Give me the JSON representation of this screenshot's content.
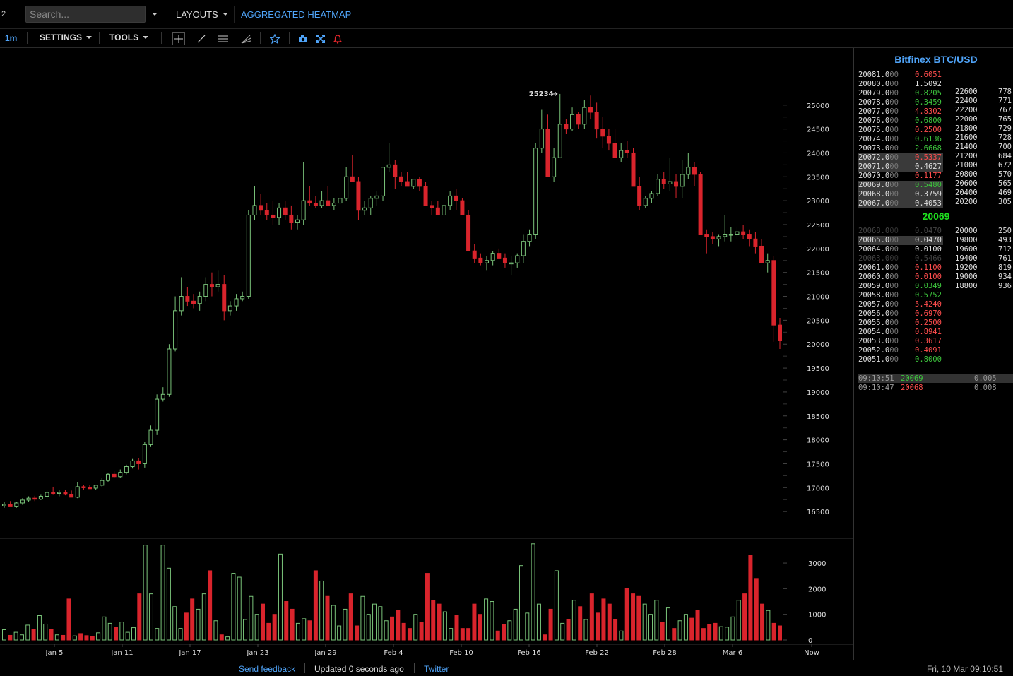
{
  "topbar": {
    "number": "2",
    "search_placeholder": "Search...",
    "layouts_label": "LAYOUTS",
    "heatmap_label": "AGGREGATED HEATMAP"
  },
  "toolbar": {
    "timeframe": "1m",
    "settings_label": "SETTINGS",
    "tools_label": "TOOLS",
    "icons": [
      "crosshair-icon",
      "trendline-icon",
      "horizontal-lines-icon",
      "fib-fan-icon",
      "star-icon",
      "camera-icon",
      "fullscreen-icon",
      "alert-bell-icon"
    ]
  },
  "chart_data": {
    "type": "candlestick",
    "price_ticks": [
      25000,
      24500,
      24000,
      23500,
      23000,
      22500,
      22000,
      21500,
      21000,
      20500,
      20000,
      19500,
      19000,
      18500,
      18000,
      17500,
      17000,
      16500
    ],
    "price_range": [
      16000,
      25750
    ],
    "high_annotation": "25234",
    "volume_ticks": [
      3000,
      2000,
      1000,
      0
    ],
    "volume_range": [
      0,
      3800
    ],
    "x_labels": [
      "Jan 5",
      "Jan 11",
      "Jan 17",
      "Jan 23",
      "Jan 29",
      "Feb 4",
      "Feb 10",
      "Feb 16",
      "Feb 22",
      "Feb 28",
      "Mar 6",
      "Now"
    ],
    "x_label_days": [
      4,
      10,
      16,
      22,
      28,
      34,
      40,
      46,
      52,
      58,
      64,
      71
    ],
    "candles_ohlc": [
      [
        16620,
        16700,
        16580,
        16650
      ],
      [
        16650,
        16720,
        16600,
        16600
      ],
      [
        16600,
        16700,
        16580,
        16680
      ],
      [
        16680,
        16780,
        16640,
        16740
      ],
      [
        16740,
        16820,
        16700,
        16780
      ],
      [
        16780,
        16830,
        16720,
        16760
      ],
      [
        16760,
        16850,
        16740,
        16820
      ],
      [
        16820,
        16960,
        16760,
        16900
      ],
      [
        16900,
        17020,
        16850,
        16880
      ],
      [
        16880,
        16950,
        16820,
        16900
      ],
      [
        16900,
        16960,
        16840,
        16860
      ],
      [
        16860,
        16940,
        16820,
        16800
      ],
      [
        16800,
        17110,
        16780,
        17020
      ],
      [
        17020,
        17060,
        16960,
        17000
      ],
      [
        17000,
        17050,
        16980,
        16990
      ],
      [
        16990,
        17060,
        16960,
        17050
      ],
      [
        17050,
        17200,
        17020,
        17150
      ],
      [
        17150,
        17300,
        17120,
        17280
      ],
      [
        17280,
        17340,
        17200,
        17230
      ],
      [
        17230,
        17380,
        17200,
        17320
      ],
      [
        17320,
        17480,
        17280,
        17440
      ],
      [
        17440,
        17600,
        17400,
        17560
      ],
      [
        17560,
        17620,
        17380,
        17500
      ],
      [
        17500,
        17950,
        17420,
        17900
      ],
      [
        17900,
        18300,
        17850,
        18200
      ],
      [
        18200,
        18950,
        18100,
        18850
      ],
      [
        18850,
        19100,
        18800,
        18950
      ],
      [
        18950,
        20000,
        18900,
        19900
      ],
      [
        19900,
        21000,
        19850,
        20700
      ],
      [
        20700,
        21400,
        20600,
        21000
      ],
      [
        21000,
        21200,
        20800,
        20900
      ],
      [
        20900,
        21050,
        20750,
        20850
      ],
      [
        20850,
        21100,
        20700,
        21000
      ],
      [
        21000,
        21400,
        20900,
        21250
      ],
      [
        21250,
        21500,
        21000,
        21200
      ],
      [
        21200,
        21550,
        21100,
        21250
      ],
      [
        21250,
        21450,
        20500,
        20700
      ],
      [
        20700,
        20900,
        20600,
        20800
      ],
      [
        20800,
        21050,
        20700,
        20950
      ],
      [
        20950,
        21100,
        20900,
        21000
      ],
      [
        21000,
        22800,
        20950,
        22700
      ],
      [
        22700,
        23300,
        22600,
        22900
      ],
      [
        22900,
        23150,
        22700,
        22800
      ],
      [
        22800,
        22950,
        22600,
        22700
      ],
      [
        22700,
        23000,
        22500,
        22650
      ],
      [
        22650,
        22950,
        22500,
        22850
      ],
      [
        22850,
        23000,
        22600,
        22700
      ],
      [
        22700,
        22900,
        22400,
        22550
      ],
      [
        22550,
        22700,
        22400,
        22600
      ],
      [
        22600,
        23800,
        22500,
        23000
      ],
      [
        23000,
        23300,
        22900,
        22950
      ],
      [
        22950,
        23100,
        22850,
        22900
      ],
      [
        22900,
        23200,
        22850,
        23000
      ],
      [
        23000,
        23300,
        22900,
        22900
      ],
      [
        22900,
        23050,
        22800,
        22950
      ],
      [
        22950,
        23100,
        22900,
        23050
      ],
      [
        23050,
        23700,
        23000,
        23500
      ],
      [
        23500,
        23950,
        23400,
        23400
      ],
      [
        23400,
        23500,
        22600,
        22800
      ],
      [
        22800,
        23000,
        22700,
        22850
      ],
      [
        22850,
        23100,
        22700,
        23050
      ],
      [
        23050,
        23200,
        22900,
        23100
      ],
      [
        23100,
        23700,
        23000,
        23700
      ],
      [
        23700,
        24200,
        23600,
        23750
      ],
      [
        23750,
        23850,
        23250,
        23500
      ],
      [
        23500,
        23600,
        23300,
        23400
      ],
      [
        23400,
        23600,
        23300,
        23300
      ],
      [
        23300,
        23400,
        23250,
        23450
      ],
      [
        23450,
        23500,
        23200,
        23300
      ],
      [
        23300,
        23400,
        22900,
        22900
      ],
      [
        22900,
        23000,
        22700,
        22850
      ],
      [
        22850,
        23000,
        22700,
        22700
      ],
      [
        22700,
        23050,
        22600,
        22900
      ],
      [
        22900,
        23200,
        22800,
        23100
      ],
      [
        23100,
        23250,
        22800,
        23000
      ],
      [
        23000,
        23050,
        22700,
        22700
      ],
      [
        22700,
        22800,
        22100,
        21950
      ],
      [
        21950,
        22100,
        21700,
        21800
      ],
      [
        21800,
        21900,
        21650,
        21700
      ],
      [
        21700,
        21850,
        21550,
        21750
      ],
      [
        21750,
        21950,
        21650,
        21900
      ],
      [
        21900,
        22000,
        21800,
        21800
      ],
      [
        21800,
        21900,
        21600,
        21700
      ],
      [
        21700,
        21850,
        21450,
        21700
      ],
      [
        21700,
        21900,
        21600,
        21850
      ],
      [
        21850,
        22300,
        21700,
        22150
      ],
      [
        22150,
        22400,
        22050,
        22300
      ],
      [
        22300,
        24200,
        22200,
        24100
      ],
      [
        24100,
        24900,
        24000,
        24500
      ],
      [
        24500,
        24800,
        23600,
        23500
      ],
      [
        23500,
        24100,
        23400,
        23900
      ],
      [
        23900,
        25234,
        23900,
        24600
      ],
      [
        24600,
        24700,
        24400,
        24500
      ],
      [
        24500,
        24950,
        24450,
        24800
      ],
      [
        24800,
        24850,
        24500,
        24600
      ],
      [
        24600,
        25100,
        24500,
        24950
      ],
      [
        24950,
        25200,
        24700,
        24850
      ],
      [
        24850,
        25050,
        24300,
        24500
      ],
      [
        24500,
        24750,
        24100,
        24350
      ],
      [
        24350,
        24500,
        24050,
        24200
      ],
      [
        24200,
        24500,
        23950,
        23900
      ],
      [
        23900,
        24200,
        23800,
        24050
      ],
      [
        24050,
        24250,
        23900,
        24000
      ],
      [
        24000,
        24100,
        23300,
        23300
      ],
      [
        23300,
        23500,
        22800,
        22900
      ],
      [
        22900,
        23100,
        22850,
        23050
      ],
      [
        23050,
        23200,
        22950,
        23150
      ],
      [
        23150,
        23550,
        23100,
        23450
      ],
      [
        23450,
        23600,
        23250,
        23350
      ],
      [
        23350,
        23900,
        23200,
        23400
      ],
      [
        23400,
        23550,
        23050,
        23300
      ],
      [
        23300,
        23850,
        23050,
        23550
      ],
      [
        23550,
        24000,
        23450,
        23700
      ],
      [
        23700,
        23800,
        23300,
        23550
      ],
      [
        23550,
        23600,
        22800,
        22300
      ],
      [
        22300,
        22400,
        21900,
        22250
      ],
      [
        22250,
        22350,
        22100,
        22200
      ],
      [
        22200,
        22300,
        22050,
        22250
      ],
      [
        22250,
        22700,
        22150,
        22300
      ],
      [
        22300,
        22450,
        22150,
        22300
      ],
      [
        22300,
        22450,
        22200,
        22350
      ],
      [
        22350,
        22500,
        22200,
        22300
      ],
      [
        22300,
        22400,
        22050,
        22200
      ],
      [
        22200,
        22350,
        21900,
        22050
      ],
      [
        22050,
        22200,
        21750,
        21700
      ],
      [
        21700,
        21900,
        21500,
        21750
      ],
      [
        21750,
        21850,
        20050,
        20400
      ],
      [
        20400,
        20550,
        19900,
        20070
      ]
    ],
    "volumes": [
      400,
      180,
      300,
      200,
      580,
      420,
      950,
      620,
      420,
      200,
      180,
      1600,
      160,
      250,
      170,
      150,
      280,
      900,
      650,
      500,
      700,
      300,
      480,
      1800,
      3700,
      1800,
      450,
      3700,
      2800,
      1300,
      450,
      1050,
      1600,
      1200,
      1800,
      2700,
      750,
      200,
      120,
      2600,
      2450,
      800,
      1700,
      1000,
      1400,
      650,
      1000,
      3350,
      1500,
      1200,
      650,
      830,
      750,
      2700,
      2300,
      1700,
      1350,
      550,
      1200,
      1800,
      550,
      1700,
      1000,
      1400,
      1300,
      750,
      900,
      1150,
      650,
      450,
      1000,
      700,
      2600,
      1550,
      1400,
      1100,
      450,
      950,
      450,
      450,
      1400,
      1000,
      1600,
      1500,
      350,
      600,
      750,
      1200,
      2900,
      1050,
      3750,
      1400,
      200,
      1200,
      2700,
      650,
      800,
      1550,
      1300,
      800,
      1800,
      1050,
      1600,
      1400,
      800,
      350,
      2000,
      1800,
      1700,
      1400,
      1000,
      1550,
      700,
      1250,
      450,
      750,
      1000,
      850,
      1150,
      450,
      600,
      650,
      520,
      500,
      900,
      1550,
      1800,
      3300,
      2400,
      1400,
      1150,
      650,
      550
    ]
  },
  "book": {
    "title": "Bitfinex BTC/USD",
    "asks": [
      {
        "price": "20081.0",
        "dim": "00",
        "amt": "0.6051",
        "c": "r"
      },
      {
        "price": "20080.0",
        "dim": "00",
        "amt": "1.5092",
        "c": "y"
      },
      {
        "price": "20079.0",
        "dim": "00",
        "amt": "0.8205",
        "c": "g"
      },
      {
        "price": "20078.0",
        "dim": "00",
        "amt": "0.3459",
        "c": "g"
      },
      {
        "price": "20077.0",
        "dim": "00",
        "amt": "4.8302",
        "c": "r"
      },
      {
        "price": "20076.0",
        "dim": "00",
        "amt": "0.6800",
        "c": "g"
      },
      {
        "price": "20075.0",
        "dim": "00",
        "amt": "0.2500",
        "c": "r"
      },
      {
        "price": "20074.0",
        "dim": "00",
        "amt": "0.6136",
        "c": "g"
      },
      {
        "price": "20073.0",
        "dim": "00",
        "amt": "2.6668",
        "c": "g"
      },
      {
        "price": "20072.0",
        "dim": "00",
        "amt": "0.5337",
        "c": "r",
        "hl": true
      },
      {
        "price": "20071.0",
        "dim": "00",
        "amt": "0.4627",
        "c": "y",
        "hl": true
      },
      {
        "price": "20070.0",
        "dim": "00",
        "amt": "0.1177",
        "c": "r"
      },
      {
        "price": "20069.0",
        "dim": "00",
        "amt": "0.5480",
        "c": "g",
        "hl": true
      },
      {
        "price": "20068.0",
        "dim": "00",
        "amt": "0.3759",
        "c": "y",
        "hl": true
      },
      {
        "price": "20067.0",
        "dim": "00",
        "amt": "0.4053",
        "c": "y",
        "hl": true
      }
    ],
    "mid_price": "20069",
    "bids": [
      {
        "price": "20068.0",
        "dim": "00",
        "amt": "0.0470",
        "c": "y",
        "faded": true
      },
      {
        "price": "20065.0",
        "dim": "00",
        "amt": "0.0470",
        "c": "y",
        "hl": true
      },
      {
        "price": "20064.0",
        "dim": "00",
        "amt": "0.0100",
        "c": "y"
      },
      {
        "price": "20063.0",
        "dim": "00",
        "amt": "0.5466",
        "c": "g",
        "faded": true
      },
      {
        "price": "20061.0",
        "dim": "00",
        "amt": "0.1100",
        "c": "r"
      },
      {
        "price": "20060.0",
        "dim": "00",
        "amt": "0.0100",
        "c": "r"
      },
      {
        "price": "20059.0",
        "dim": "00",
        "amt": "0.0349",
        "c": "g"
      },
      {
        "price": "20058.0",
        "dim": "00",
        "amt": "0.5752",
        "c": "g"
      },
      {
        "price": "20057.0",
        "dim": "00",
        "amt": "5.4240",
        "c": "r"
      },
      {
        "price": "20056.0",
        "dim": "00",
        "amt": "0.6970",
        "c": "r"
      },
      {
        "price": "20055.0",
        "dim": "00",
        "amt": "0.2500",
        "c": "r"
      },
      {
        "price": "20054.0",
        "dim": "00",
        "amt": "0.8941",
        "c": "r"
      },
      {
        "price": "20053.0",
        "dim": "00",
        "amt": "0.3617",
        "c": "r"
      },
      {
        "price": "20052.0",
        "dim": "00",
        "amt": "0.4091",
        "c": "r"
      },
      {
        "price": "20051.0",
        "dim": "00",
        "amt": "0.8000",
        "c": "g"
      }
    ],
    "ask_depth": [
      {
        "p": "22600",
        "v": "778"
      },
      {
        "p": "22400",
        "v": "771"
      },
      {
        "p": "22200",
        "v": "767"
      },
      {
        "p": "22000",
        "v": "765"
      },
      {
        "p": "21800",
        "v": "729"
      },
      {
        "p": "21600",
        "v": "728"
      },
      {
        "p": "21400",
        "v": "700"
      },
      {
        "p": "21200",
        "v": "684"
      },
      {
        "p": "21000",
        "v": "672"
      },
      {
        "p": "20800",
        "v": "570"
      },
      {
        "p": "20600",
        "v": "565"
      },
      {
        "p": "20400",
        "v": "469"
      },
      {
        "p": "20200",
        "v": "305"
      }
    ],
    "bid_depth": [
      {
        "p": "20000",
        "v": "250"
      },
      {
        "p": "19800",
        "v": "493"
      },
      {
        "p": "19600",
        "v": "712"
      },
      {
        "p": "19400",
        "v": "761"
      },
      {
        "p": "19200",
        "v": "819"
      },
      {
        "p": "19000",
        "v": "934"
      },
      {
        "p": "18800",
        "v": "936"
      }
    ],
    "trades": [
      {
        "time": "09:10:51",
        "price": "20069",
        "qty": "0.005",
        "c": "g",
        "hl": true
      },
      {
        "time": "09:10:47",
        "price": "20068",
        "qty": "0.008",
        "c": "r"
      }
    ]
  },
  "footer": {
    "feedback": "Send feedback",
    "updated": "Updated 0 seconds ago",
    "twitter": "Twitter",
    "datetime": "Fri, 10 Mar 09:10:51"
  },
  "colors": {
    "up": "#7ac47a",
    "down": "#d9242c",
    "accent": "#4fa3f7",
    "alert": "#e8262b"
  }
}
